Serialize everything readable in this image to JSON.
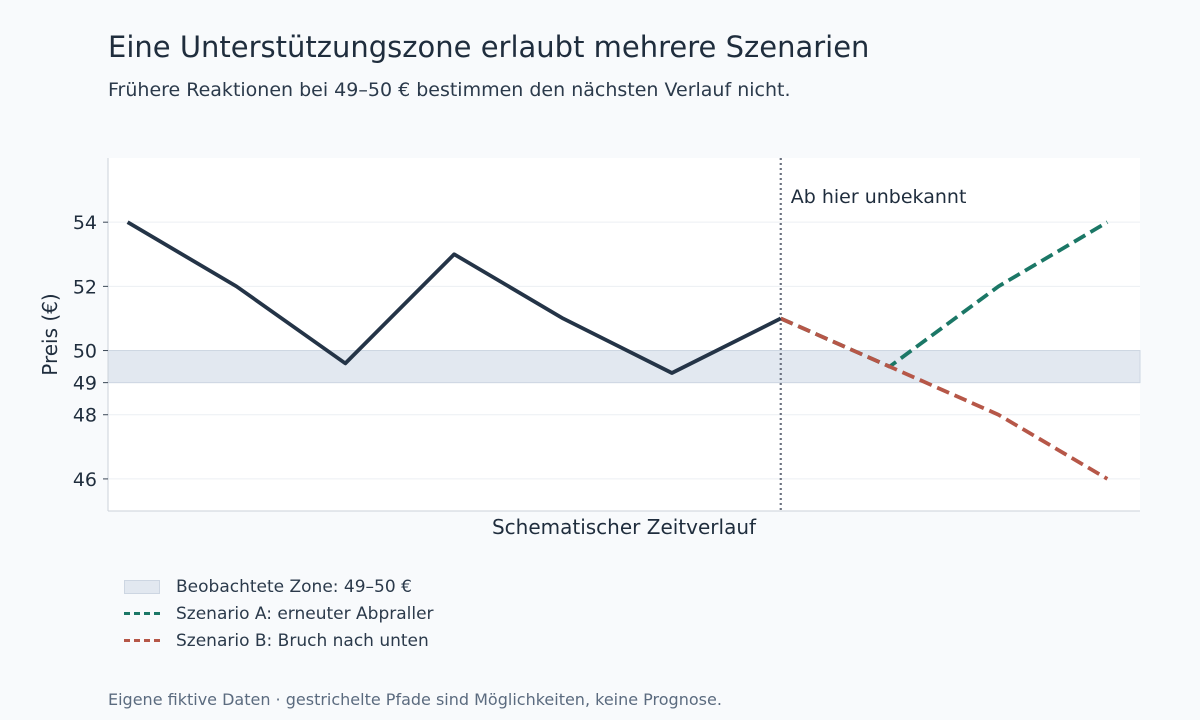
{
  "title": "Eine Unterstützungszone erlaubt mehrere Szenarien",
  "subtitle": "Frühere Reaktionen bei 49–50 € bestimmen den nächsten Verlauf nicht.",
  "source_note": "Eigene fiktive Daten · gestrichelte Pfade sind Möglichkeiten, keine Prognose.",
  "colors": {
    "history": "#243447",
    "scenario_a": "#1b7766",
    "scenario_b": "#b65748",
    "zone_fill": "#e2e8f0",
    "divider": "#6b7280"
  },
  "chart_data": {
    "type": "line",
    "xlabel": "Schematischer Zeitverlauf",
    "ylabel": "Preis (€)",
    "ylim": [
      45,
      56
    ],
    "yticks": [
      46,
      48,
      49,
      50,
      52,
      54
    ],
    "xlim": [
      -0.18,
      9.3
    ],
    "grid": true,
    "zone": {
      "label": "Beobachtete Zone: 49–50 €",
      "from": 49,
      "to": 50
    },
    "divider": {
      "x": 6,
      "label": "Ab hier unbekannt"
    },
    "series": [
      {
        "key": "history",
        "name": "",
        "style": "solid",
        "x": [
          0,
          1,
          2,
          3,
          4,
          5,
          6
        ],
        "values": [
          54,
          52,
          49.6,
          53,
          51,
          49.3,
          51
        ]
      },
      {
        "key": "scenario_a",
        "name": "Szenario A: erneuter Abpraller",
        "style": "dashed",
        "x": [
          6,
          7,
          8,
          9
        ],
        "values": [
          51,
          49.5,
          52,
          54
        ]
      },
      {
        "key": "scenario_b",
        "name": "Szenario B: Bruch nach unten",
        "style": "dashed",
        "x": [
          6,
          7,
          8,
          9
        ],
        "values": [
          51,
          49.5,
          48,
          46
        ]
      }
    ]
  },
  "legend": [
    {
      "key": "zone",
      "label": "Beobachtete Zone: 49–50 €"
    },
    {
      "key": "scenario_a",
      "label": "Szenario A: erneuter Abpraller"
    },
    {
      "key": "scenario_b",
      "label": "Szenario B: Bruch nach unten"
    }
  ]
}
